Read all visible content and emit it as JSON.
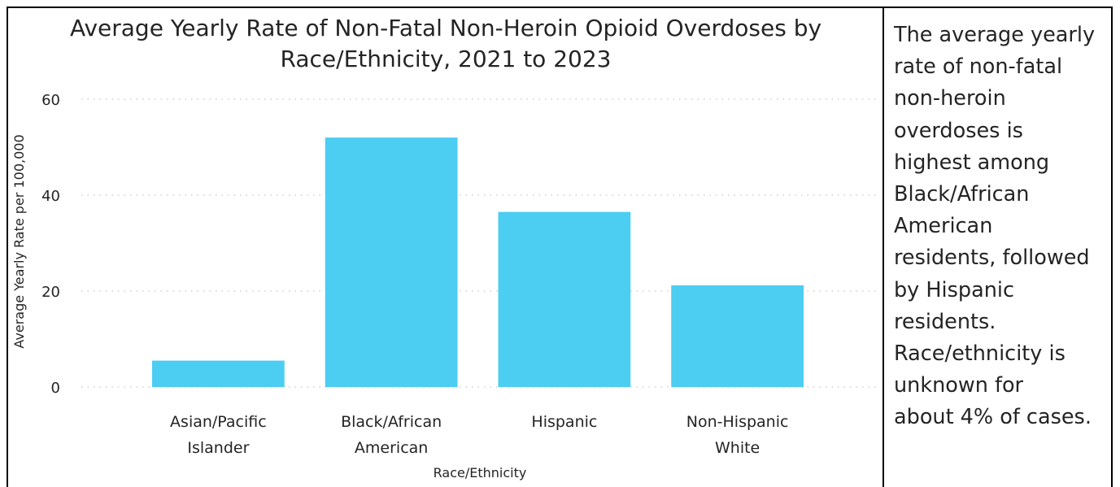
{
  "chart_data": {
    "type": "bar",
    "title": "Average Yearly Rate of Non-Fatal Non-Heroin Opioid Overdoses by Race/Ethnicity, 2021 to 2023",
    "title_lines": [
      "Average Yearly Rate of Non-Fatal Non-Heroin Opioid Overdoses by",
      "Race/Ethnicity, 2021 to 2023"
    ],
    "categories": [
      [
        "Asian/Pacific",
        "Islander"
      ],
      [
        "Black/African",
        "American"
      ],
      [
        "Hispanic"
      ],
      [
        "Non-Hispanic",
        "White"
      ]
    ],
    "values": [
      5.5,
      52,
      36.5,
      21.2
    ],
    "xlabel": "Race/Ethnicity",
    "ylabel": "Average Yearly Rate per 100,000",
    "ylim": [
      0,
      60
    ],
    "yticks": [
      0,
      20,
      40,
      60
    ],
    "grid": true,
    "bar_color": "#4ccdf2"
  },
  "side_note": {
    "lines": [
      "The average yearly",
      "rate of non-fatal",
      "non-heroin",
      "overdoses is",
      "highest among",
      "Black/African",
      "American",
      "residents, followed",
      "by Hispanic",
      "residents.",
      "Race/ethnicity is",
      "unknown for",
      "about 4% of cases."
    ]
  }
}
